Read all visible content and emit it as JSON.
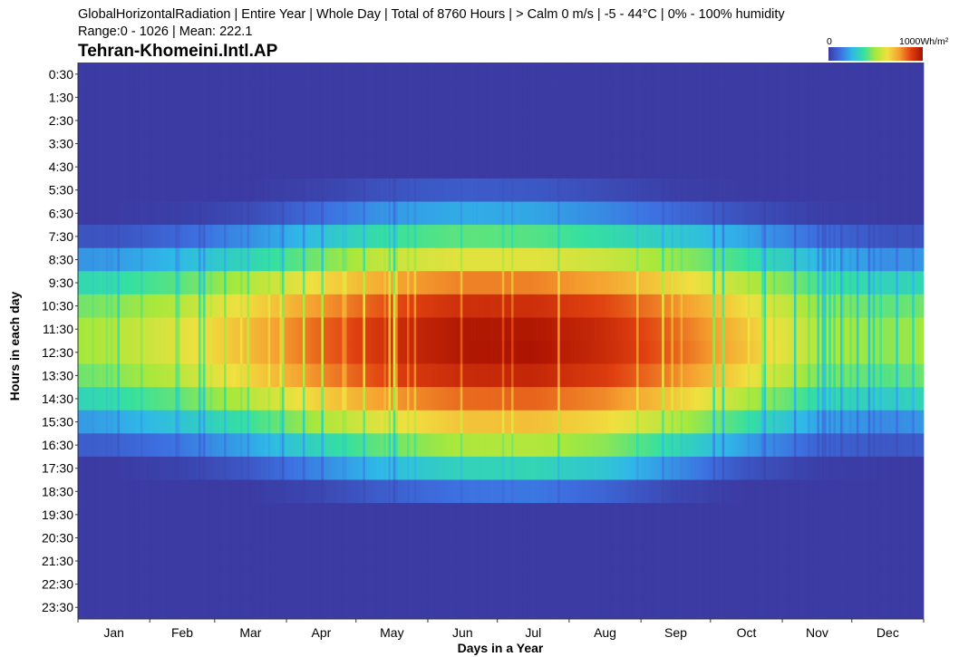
{
  "header": {
    "line1": "GlobalHorizontalRadiation | Entire Year | Whole Day | Total of 8760 Hours | > Calm 0 m/s | -5 - 44°C | 0% - 100% humidity",
    "line2": "Range:0 - 1026 | Mean: 222.1",
    "station": "Tehran-Khomeini.Intl.AP"
  },
  "legend": {
    "min_label": "0",
    "max_label": "1000Wh/m²",
    "colors": [
      "#3b3ba3",
      "#3d6fe0",
      "#2fb8e8",
      "#35e0a0",
      "#a8e83c",
      "#f0e040",
      "#f5a030",
      "#e04010",
      "#a81000"
    ]
  },
  "chart_data": {
    "type": "heatmap",
    "title": "GlobalHorizontalRadiation",
    "xlabel": "Days in a Year",
    "ylabel": "Hours in each day",
    "x_categories": [
      "Jan",
      "Feb",
      "Mar",
      "Apr",
      "May",
      "Jun",
      "Jul",
      "Aug",
      "Sep",
      "Oct",
      "Nov",
      "Dec"
    ],
    "y_categories": [
      "0:30",
      "1:30",
      "2:30",
      "3:30",
      "4:30",
      "5:30",
      "6:30",
      "7:30",
      "8:30",
      "9:30",
      "10:30",
      "11:30",
      "12:30",
      "13:30",
      "14:30",
      "15:30",
      "16:30",
      "17:30",
      "18:30",
      "19:30",
      "20:30",
      "21:30",
      "22:30",
      "23:30"
    ],
    "value_range": [
      0,
      1026
    ],
    "mean": 222.1,
    "colorbar_range": [
      0,
      1000
    ],
    "unit": "Wh/m²",
    "monthly_profile_wh_m2": [
      [
        0,
        0,
        0,
        0,
        0,
        0,
        0,
        0,
        0,
        0,
        0,
        0
      ],
      [
        0,
        0,
        0,
        0,
        0,
        0,
        0,
        0,
        0,
        0,
        0,
        0
      ],
      [
        0,
        0,
        0,
        0,
        0,
        0,
        0,
        0,
        0,
        0,
        0,
        0
      ],
      [
        0,
        0,
        0,
        0,
        0,
        0,
        0,
        0,
        0,
        0,
        0,
        0
      ],
      [
        0,
        0,
        0,
        0,
        0,
        0,
        0,
        0,
        0,
        0,
        0,
        0
      ],
      [
        0,
        0,
        0,
        20,
        60,
        80,
        70,
        40,
        10,
        0,
        0,
        0
      ],
      [
        0,
        10,
        40,
        120,
        200,
        230,
        220,
        170,
        110,
        50,
        10,
        0
      ],
      [
        60,
        110,
        180,
        280,
        380,
        420,
        410,
        360,
        300,
        220,
        120,
        60
      ],
      [
        200,
        260,
        340,
        450,
        560,
        600,
        600,
        560,
        480,
        380,
        260,
        180
      ],
      [
        360,
        420,
        520,
        640,
        740,
        790,
        790,
        740,
        650,
        530,
        400,
        330
      ],
      [
        460,
        530,
        640,
        760,
        860,
        920,
        920,
        870,
        770,
        630,
        480,
        420
      ],
      [
        520,
        600,
        700,
        830,
        920,
        980,
        980,
        930,
        820,
        680,
        520,
        470
      ],
      [
        520,
        600,
        700,
        830,
        920,
        980,
        990,
        930,
        830,
        690,
        520,
        470
      ],
      [
        460,
        540,
        650,
        780,
        880,
        930,
        940,
        890,
        780,
        630,
        460,
        410
      ],
      [
        360,
        430,
        530,
        660,
        760,
        820,
        830,
        780,
        670,
        520,
        360,
        310
      ],
      [
        220,
        290,
        380,
        510,
        610,
        680,
        690,
        640,
        520,
        380,
        220,
        170
      ],
      [
        90,
        140,
        220,
        340,
        440,
        510,
        520,
        470,
        350,
        210,
        100,
        70
      ],
      [
        0,
        20,
        70,
        170,
        270,
        330,
        340,
        290,
        180,
        60,
        10,
        0
      ],
      [
        0,
        0,
        0,
        30,
        90,
        130,
        140,
        100,
        30,
        0,
        0,
        0
      ],
      [
        0,
        0,
        0,
        0,
        0,
        0,
        0,
        0,
        0,
        0,
        0,
        0
      ],
      [
        0,
        0,
        0,
        0,
        0,
        0,
        0,
        0,
        0,
        0,
        0,
        0
      ],
      [
        0,
        0,
        0,
        0,
        0,
        0,
        0,
        0,
        0,
        0,
        0,
        0
      ],
      [
        0,
        0,
        0,
        0,
        0,
        0,
        0,
        0,
        0,
        0,
        0,
        0
      ],
      [
        0,
        0,
        0,
        0,
        0,
        0,
        0,
        0,
        0,
        0,
        0,
        0
      ]
    ]
  }
}
